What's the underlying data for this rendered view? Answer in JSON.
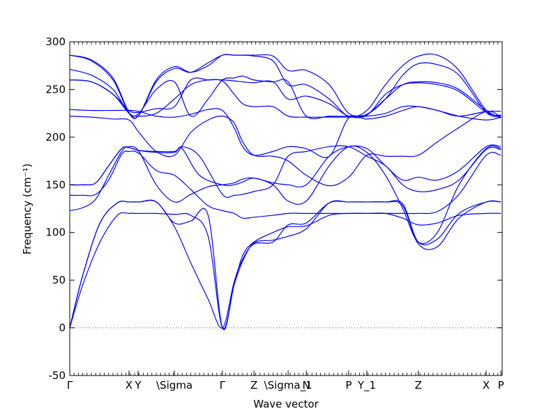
{
  "chart_data": {
    "type": "line",
    "title": "",
    "xlabel": "Wave vector",
    "ylabel": "Frequency (cm⁻¹)",
    "ylim": [
      -50,
      300
    ],
    "yticks": [
      -50,
      0,
      50,
      100,
      150,
      200,
      250,
      300
    ],
    "xlim": [
      0,
      1
    ],
    "grid": false,
    "legend": "none",
    "colors": {
      "line": "#0000ff",
      "zero_line": "#555555",
      "axis": "#000000"
    },
    "symmetry_points": [
      {
        "label": "Γ",
        "x": 0.0
      },
      {
        "label": "X",
        "x": 0.137
      },
      {
        "label": "Y",
        "x": 0.158
      },
      {
        "label": "\\Sigma",
        "x": 0.242
      },
      {
        "label": "Γ",
        "x": 0.353
      },
      {
        "label": "Z",
        "x": 0.426
      },
      {
        "label": "\\Sigma_1",
        "x": 0.505
      },
      {
        "label": "N",
        "x": 0.547
      },
      {
        "label": "P",
        "x": 0.645
      },
      {
        "label": "Y_1",
        "x": 0.687
      },
      {
        "label": "Z",
        "x": 0.806
      },
      {
        "label": "X",
        "x": 0.963
      },
      {
        "label": "P",
        "x": 0.997
      }
    ],
    "series": [
      {
        "x": [
          0,
          0.03,
          0.07,
          0.11,
          0.137,
          0.16,
          0.2,
          0.242,
          0.28,
          0.32,
          0.353,
          0.38,
          0.4,
          0.426,
          0.47,
          0.505,
          0.547,
          0.6,
          0.645,
          0.687,
          0.73,
          0.77,
          0.806,
          0.85,
          0.9,
          0.963,
          0.997
        ],
        "y": [
          0,
          45,
          90,
          118,
          120,
          120,
          120,
          119,
          118,
          96,
          0,
          45,
          76,
          90,
          100,
          106,
          107,
          118,
          120,
          120,
          120,
          115,
          108,
          110,
          118,
          120,
          120
        ]
      },
      {
        "x": [
          0,
          0.03,
          0.07,
          0.11,
          0.137,
          0.16,
          0.2,
          0.242,
          0.28,
          0.32,
          0.353,
          0.38,
          0.4,
          0.426,
          0.47,
          0.505,
          0.547,
          0.6,
          0.645,
          0.687,
          0.73,
          0.77,
          0.806,
          0.85,
          0.9,
          0.963,
          0.997
        ],
        "y": [
          0,
          55,
          110,
          131,
          132,
          132,
          132,
          110,
          112,
          118,
          0,
          45,
          70,
          89,
          92,
          96,
          104,
          131,
          132,
          132,
          132,
          130,
          90,
          93,
          120,
          132,
          132
        ]
      },
      {
        "x": [
          0,
          0.03,
          0.07,
          0.11,
          0.137,
          0.16,
          0.2,
          0.242,
          0.28,
          0.32,
          0.353,
          0.38,
          0.4,
          0.426,
          0.47,
          0.505,
          0.547,
          0.6,
          0.645,
          0.687,
          0.73,
          0.77,
          0.806,
          0.85,
          0.9,
          0.963,
          0.997
        ],
        "y": [
          0,
          55,
          110,
          131,
          132,
          132,
          132,
          106,
          68,
          30,
          0,
          48,
          72,
          88,
          90,
          108,
          110,
          131,
          132,
          132,
          132,
          128,
          88,
          85,
          115,
          132,
          132
        ]
      },
      {
        "x": [
          0,
          0.03,
          0.06,
          0.09,
          0.12,
          0.137,
          0.16,
          0.2,
          0.242,
          0.28,
          0.32,
          0.353,
          0.38,
          0.4,
          0.426,
          0.47,
          0.505,
          0.547,
          0.6,
          0.645,
          0.687,
          0.73,
          0.77,
          0.806,
          0.85,
          0.9,
          0.963,
          0.997
        ],
        "y": [
          123,
          126,
          135,
          160,
          185,
          190,
          185,
          150,
          132,
          140,
          148,
          150,
          152,
          156,
          157,
          150,
          133,
          133,
          170,
          190,
          184,
          160,
          125,
          90,
          100,
          150,
          188,
          188
        ]
      },
      {
        "x": [
          0,
          0.03,
          0.06,
          0.09,
          0.12,
          0.137,
          0.16,
          0.2,
          0.242,
          0.28,
          0.32,
          0.353,
          0.38,
          0.4,
          0.426,
          0.47,
          0.505,
          0.547,
          0.6,
          0.645,
          0.687,
          0.73,
          0.77,
          0.806,
          0.85,
          0.9,
          0.963,
          0.997
        ],
        "y": [
          139,
          139,
          140,
          155,
          182,
          185,
          183,
          165,
          160,
          145,
          128,
          123,
          120,
          115,
          116,
          118,
          120,
          120,
          120,
          120,
          120,
          120,
          120,
          120,
          122,
          140,
          181,
          181
        ]
      },
      {
        "x": [
          0,
          0.03,
          0.06,
          0.09,
          0.12,
          0.137,
          0.16,
          0.2,
          0.242,
          0.26,
          0.3,
          0.353,
          0.38,
          0.4,
          0.426,
          0.47,
          0.505,
          0.547,
          0.6,
          0.645,
          0.687,
          0.73,
          0.77,
          0.806,
          0.85,
          0.9,
          0.963,
          0.997
        ],
        "y": [
          150,
          150,
          152,
          170,
          188,
          189,
          186,
          185,
          185,
          188,
          160,
          150,
          150,
          153,
          157,
          152,
          150,
          150,
          180,
          190,
          188,
          170,
          155,
          158,
          155,
          165,
          190,
          190
        ]
      },
      {
        "x": [
          0,
          0.03,
          0.06,
          0.09,
          0.12,
          0.137,
          0.16,
          0.2,
          0.242,
          0.26,
          0.3,
          0.353,
          0.38,
          0.4,
          0.426,
          0.47,
          0.505,
          0.547,
          0.6,
          0.645,
          0.687,
          0.73,
          0.77,
          0.806,
          0.85,
          0.9,
          0.963,
          0.997
        ],
        "y": [
          150,
          150,
          152,
          170,
          188,
          189,
          186,
          184,
          184,
          190,
          180,
          140,
          139,
          140,
          143,
          150,
          180,
          185,
          190,
          190,
          180,
          170,
          150,
          143,
          145,
          155,
          187,
          187
        ]
      },
      {
        "x": [
          0,
          0.05,
          0.1,
          0.137,
          0.16,
          0.2,
          0.242,
          0.28,
          0.32,
          0.353,
          0.38,
          0.4,
          0.426,
          0.47,
          0.505,
          0.547,
          0.6,
          0.645,
          0.687,
          0.73,
          0.77,
          0.806,
          0.85,
          0.9,
          0.963,
          0.997
        ],
        "y": [
          222,
          221,
          219,
          218,
          205,
          185,
          181,
          205,
          218,
          222,
          215,
          195,
          181,
          180,
          175,
          160,
          149,
          158,
          181,
          180,
          180,
          181,
          195,
          210,
          227,
          221
        ]
      },
      {
        "x": [
          0,
          0.05,
          0.1,
          0.137,
          0.16,
          0.2,
          0.242,
          0.28,
          0.32,
          0.353,
          0.38,
          0.4,
          0.426,
          0.47,
          0.505,
          0.547,
          0.6,
          0.645,
          0.687,
          0.73,
          0.77,
          0.806,
          0.85,
          0.9,
          0.963,
          0.997
        ],
        "y": [
          229,
          228,
          228,
          228,
          227,
          222,
          221,
          224,
          229,
          228,
          210,
          190,
          181,
          185,
          190,
          188,
          180,
          220,
          219,
          222,
          228,
          232,
          228,
          222,
          218,
          221
        ]
      },
      {
        "x": [
          0,
          0.05,
          0.1,
          0.137,
          0.16,
          0.2,
          0.242,
          0.28,
          0.32,
          0.353,
          0.38,
          0.4,
          0.426,
          0.47,
          0.505,
          0.547,
          0.6,
          0.645,
          0.687,
          0.73,
          0.77,
          0.806,
          0.85,
          0.9,
          0.963,
          0.997
        ],
        "y": [
          260,
          258,
          245,
          228,
          226,
          230,
          232,
          260,
          260,
          259,
          245,
          235,
          232,
          232,
          222,
          221,
          221,
          221,
          222,
          225,
          232,
          232,
          228,
          222,
          227,
          227
        ]
      },
      {
        "x": [
          0,
          0.05,
          0.1,
          0.137,
          0.16,
          0.2,
          0.242,
          0.28,
          0.32,
          0.353,
          0.38,
          0.4,
          0.426,
          0.47,
          0.505,
          0.547,
          0.6,
          0.645,
          0.687,
          0.73,
          0.77,
          0.806,
          0.85,
          0.9,
          0.963,
          0.997
        ],
        "y": [
          260,
          258,
          245,
          225,
          222,
          225,
          240,
          255,
          260,
          260,
          259,
          258,
          257,
          258,
          240,
          243,
          235,
          222,
          223,
          245,
          255,
          257,
          255,
          248,
          226,
          222
        ]
      },
      {
        "x": [
          0,
          0.05,
          0.1,
          0.137,
          0.16,
          0.2,
          0.242,
          0.28,
          0.32,
          0.353,
          0.38,
          0.4,
          0.426,
          0.47,
          0.505,
          0.547,
          0.6,
          0.645,
          0.687,
          0.73,
          0.77,
          0.806,
          0.85,
          0.9,
          0.963,
          0.997
        ],
        "y": [
          271,
          265,
          250,
          225,
          225,
          250,
          258,
          222,
          240,
          260,
          262,
          264,
          260,
          258,
          258,
          222,
          222,
          222,
          224,
          240,
          255,
          258,
          257,
          250,
          228,
          220
        ]
      },
      {
        "x": [
          0,
          0.05,
          0.1,
          0.137,
          0.16,
          0.2,
          0.242,
          0.28,
          0.32,
          0.353,
          0.38,
          0.4,
          0.426,
          0.47,
          0.505,
          0.547,
          0.6,
          0.645,
          0.687,
          0.73,
          0.77,
          0.806,
          0.85,
          0.9,
          0.963,
          0.997
        ],
        "y": [
          286,
          280,
          260,
          225,
          223,
          260,
          274,
          268,
          275,
          286,
          286,
          286,
          285,
          280,
          255,
          255,
          240,
          222,
          228,
          255,
          275,
          285,
          286,
          270,
          228,
          223
        ]
      },
      {
        "x": [
          0,
          0.05,
          0.1,
          0.137,
          0.16,
          0.2,
          0.242,
          0.28,
          0.32,
          0.353,
          0.38,
          0.4,
          0.426,
          0.47,
          0.505,
          0.547,
          0.6,
          0.645,
          0.687,
          0.73,
          0.77,
          0.806,
          0.85,
          0.9,
          0.963,
          0.997
        ],
        "y": [
          286,
          281,
          262,
          226,
          223,
          258,
          272,
          268,
          278,
          286,
          286,
          286,
          286,
          285,
          270,
          270,
          255,
          225,
          224,
          240,
          265,
          277,
          276,
          265,
          226,
          222
        ]
      }
    ]
  }
}
